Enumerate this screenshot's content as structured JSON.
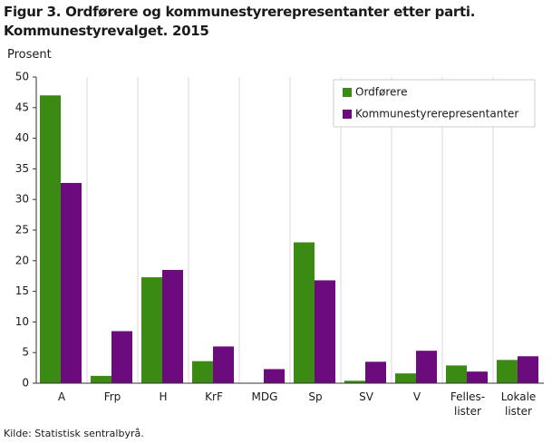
{
  "chart_data": {
    "type": "bar",
    "title": "Figur 3. Ordførere og kommunestyrerepresentanter etter parti.\nKommunestyrevalget. 2015",
    "y_label": "Prosent",
    "source": "Kilde: Statistisk sentralbyrå.",
    "categories": [
      "A",
      "Frp",
      "H",
      "KrF",
      "MDG",
      "Sp",
      "SV",
      "V",
      "Felles-\nlister",
      "Lokale\nlister"
    ],
    "series": [
      {
        "name": "Ordførere",
        "color": "#3a8a14",
        "values": [
          47.0,
          1.2,
          17.3,
          3.6,
          0,
          23.0,
          0.4,
          1.6,
          2.9,
          3.8
        ]
      },
      {
        "name": "Kommunestyrerepresentanter",
        "color": "#6c0b7e",
        "values": [
          32.7,
          8.5,
          18.5,
          6.0,
          2.3,
          16.8,
          3.5,
          5.3,
          1.9,
          4.4
        ]
      }
    ],
    "ylim": [
      0,
      50
    ],
    "yticks": [
      0,
      5,
      10,
      15,
      20,
      25,
      30,
      35,
      40,
      45,
      50
    ],
    "grid": true,
    "legend": "top-right"
  }
}
